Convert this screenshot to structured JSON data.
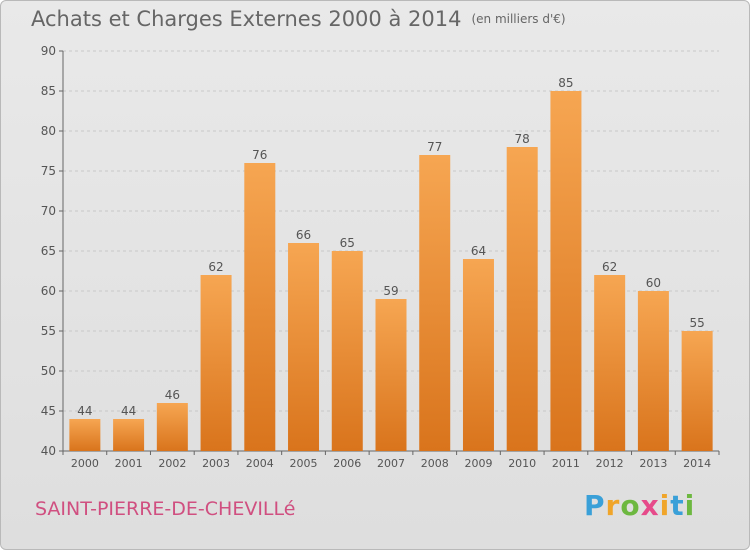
{
  "title": "Achats et Charges Externes 2000 à 2014",
  "unit": "(en milliers d'€)",
  "town": "SAINT-PIERRE-DE-CHEVILLé",
  "logo": {
    "letters": [
      "P",
      "r",
      "o",
      "x",
      "i",
      "t",
      "i"
    ],
    "colors": [
      "#3aa0d8",
      "#f0a52a",
      "#6db840",
      "#e64a8a",
      "#f0a52a",
      "#3aa0d8",
      "#6db840"
    ]
  },
  "colors": {
    "bar": "#f0953a",
    "bar_dark": "#d9741c",
    "text": "#666666",
    "grid": "#c8c8c8"
  },
  "chart_data": {
    "type": "bar",
    "categories": [
      "2000",
      "2001",
      "2002",
      "2003",
      "2004",
      "2005",
      "2006",
      "2007",
      "2008",
      "2009",
      "2010",
      "2011",
      "2012",
      "2013",
      "2014"
    ],
    "values": [
      44,
      44,
      46,
      62,
      76,
      66,
      65,
      59,
      77,
      64,
      78,
      85,
      62,
      60,
      55
    ],
    "ylim": [
      40,
      90
    ],
    "yticks": [
      40,
      45,
      50,
      55,
      60,
      65,
      70,
      75,
      80,
      85,
      90
    ],
    "title": "Achats et Charges Externes 2000 à 2014",
    "subtitle": "(en milliers d'€)",
    "grid": true,
    "data_labels": true
  }
}
